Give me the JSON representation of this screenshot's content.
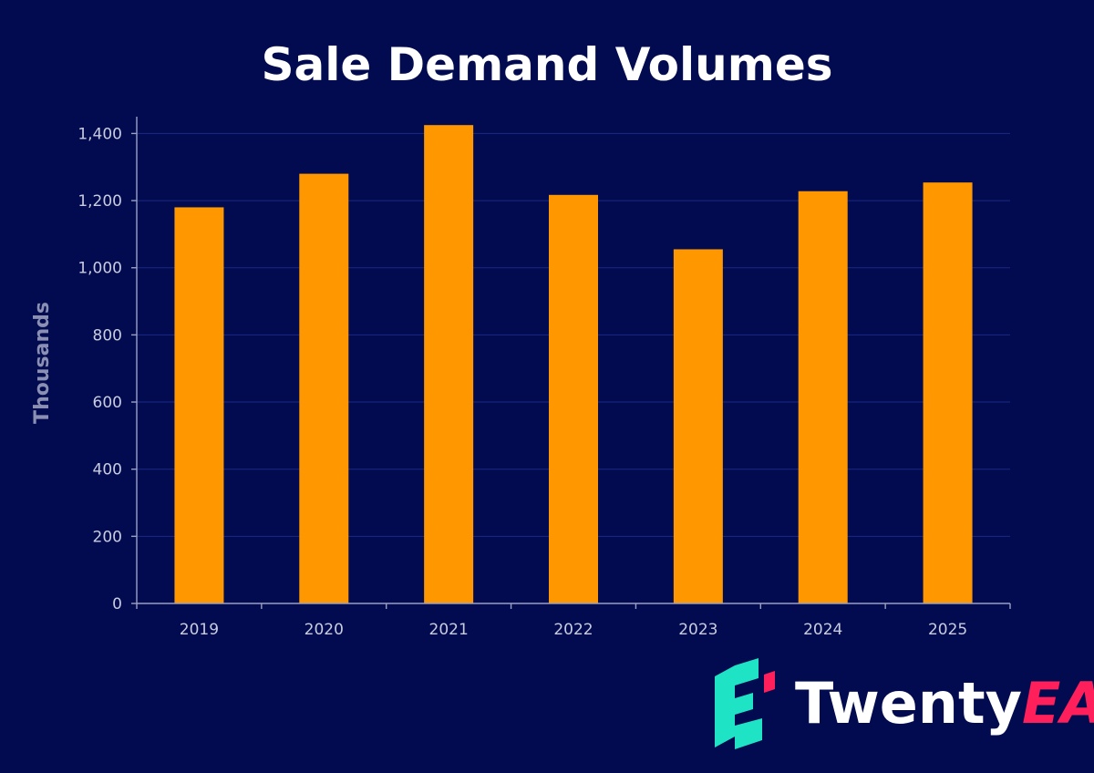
{
  "chart_data": {
    "type": "bar",
    "title": "Sale Demand Volumes",
    "xlabel": "",
    "ylabel": "Thousands",
    "categories": [
      "2019",
      "2020",
      "2021",
      "2022",
      "2023",
      "2024",
      "2025"
    ],
    "values": [
      1180,
      1280,
      1425,
      1217,
      1055,
      1228,
      1254
    ],
    "ylim": [
      0,
      1450
    ],
    "yticks": [
      0,
      200,
      400,
      600,
      800,
      1000,
      1200,
      1400
    ],
    "ytick_labels": [
      "0",
      "200",
      "400",
      "600",
      "800",
      "1,000",
      "1,200",
      "1,400"
    ],
    "grid": true,
    "legend": "none"
  },
  "brand": {
    "name_main": "Twenty",
    "name_accent": "EA",
    "colors": {
      "main_text": "#ffffff",
      "accent_text": "#ff1f5a",
      "logo_teal": "#1fe3c5",
      "logo_pink": "#ff1f5a"
    }
  },
  "colors": {
    "background": "#020b4f",
    "bar": "#ff9800",
    "grid": "#1a2a84",
    "axis": "#9aa0c4"
  }
}
